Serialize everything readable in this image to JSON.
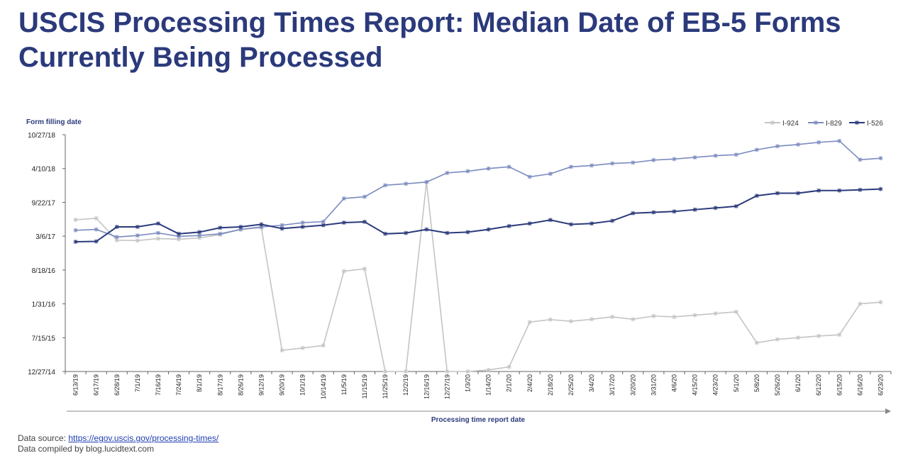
{
  "title": "USCIS Processing Times Report: Median Date of EB-5 Forms Currently Being Processed",
  "footer": {
    "source_prefix": "Data source: ",
    "source_link": "https://egov.uscis.gov/processing-times/",
    "compiled": "Data compiled by blog.lucidtext.com"
  },
  "chart_data": {
    "type": "line",
    "ylabel": "Form filling date",
    "xlabel": "Processing time report date",
    "y_ticks": [
      "10/27/18",
      "4/10/18",
      "9/22/17",
      "3/6/17",
      "8/18/16",
      "1/31/16",
      "7/15/15",
      "12/27/14"
    ],
    "ylim": [
      "12/27/14",
      "10/27/18"
    ],
    "legend_position": "top-right",
    "grid": false,
    "categories": [
      "6/13/19",
      "6/17/19",
      "6/28/19",
      "7/1/19",
      "7/16/19",
      "7/24/19",
      "8/1/19",
      "8/17/19",
      "8/26/19",
      "9/12/19",
      "9/20/19",
      "10/1/19",
      "10/14/19",
      "11/5/19",
      "11/15/19",
      "11/25/19",
      "12/2/19",
      "12/16/19",
      "12/27/19",
      "1/3/20",
      "1/14/20",
      "2/1/20",
      "2/4/20",
      "2/18/20",
      "2/25/20",
      "3/4/20",
      "3/17/20",
      "3/20/20",
      "3/31/20",
      "4/6/20",
      "4/15/20",
      "4/23/20",
      "5/1/20",
      "5/8/20",
      "5/26/20",
      "6/1/20",
      "6/12/20",
      "6/15/20",
      "6/16/20",
      "6/23/20"
    ],
    "series": [
      {
        "name": "I-924",
        "color": "#c4c4c4",
        "marker": "asterisk",
        "values": [
          "6/11/17",
          "6/20/17",
          "2/10/17",
          "2/8/17",
          "2/20/17",
          "2/16/17",
          "2/24/17",
          "3/15/17",
          "4/15/17",
          "4/25/17",
          "5/1/15",
          "5/15/15",
          "5/30/15",
          "8/11/16",
          "8/25/16",
          "12/27/14",
          "12/27/14",
          "1/20/18",
          "12/27/14",
          "12/27/14",
          "1/5/15",
          "1/23/15",
          "10/15/15",
          "10/30/15",
          "10/20/15",
          "11/1/15",
          "11/15/15",
          "11/1/15",
          "11/20/15",
          "11/15/15",
          "11/25/15",
          "12/5/15",
          "12/15/15",
          "6/15/15",
          "7/5/15",
          "7/15/15",
          "7/25/15",
          "8/1/15",
          "1/31/16",
          "2/10/16"
        ]
      },
      {
        "name": "I-829",
        "color": "#7b8bbf",
        "marker": "asterisk",
        "values": [
          "4/10/17",
          "4/15/17",
          "3/1/17",
          "3/10/17",
          "3/25/17",
          "3/5/17",
          "3/10/17",
          "3/20/17",
          "4/15/17",
          "4/30/17",
          "5/10/17",
          "5/25/17",
          "5/31/17",
          "10/15/17",
          "10/25/17",
          "1/1/18",
          "1/10/18",
          "1/20/18",
          "3/15/18",
          "3/25/18",
          "4/10/18",
          "4/20/18",
          "2/20/18",
          "3/10/18",
          "4/20/18",
          "4/28/18",
          "5/10/18",
          "5/15/18",
          "5/30/18",
          "6/5/18",
          "6/15/18",
          "6/25/18",
          "7/1/18",
          "7/30/18",
          "8/20/18",
          "8/30/18",
          "9/12/18",
          "9/20/18",
          "6/1/18",
          "6/10/18"
        ]
      },
      {
        "name": "I-526",
        "color": "#2b3a7b",
        "marker": "asterisk",
        "values": [
          "2/1/17",
          "2/3/17",
          "4/30/17",
          "4/30/17",
          "5/20/17",
          "3/20/17",
          "3/30/17",
          "4/25/17",
          "4/30/17",
          "5/15/17",
          "4/20/17",
          "4/30/17",
          "5/10/17",
          "5/25/17",
          "5/30/17",
          "3/20/17",
          "3/25/17",
          "4/15/17",
          "3/25/17",
          "3/30/17",
          "4/15/17",
          "5/5/17",
          "5/20/17",
          "6/10/17",
          "5/15/17",
          "5/20/17",
          "6/5/17",
          "7/20/17",
          "7/25/17",
          "7/30/17",
          "8/10/17",
          "8/20/17",
          "8/30/17",
          "10/31/17",
          "11/15/17",
          "11/15/17",
          "12/1/17",
          "12/1/17",
          "12/5/17",
          "12/10/17"
        ]
      }
    ]
  }
}
